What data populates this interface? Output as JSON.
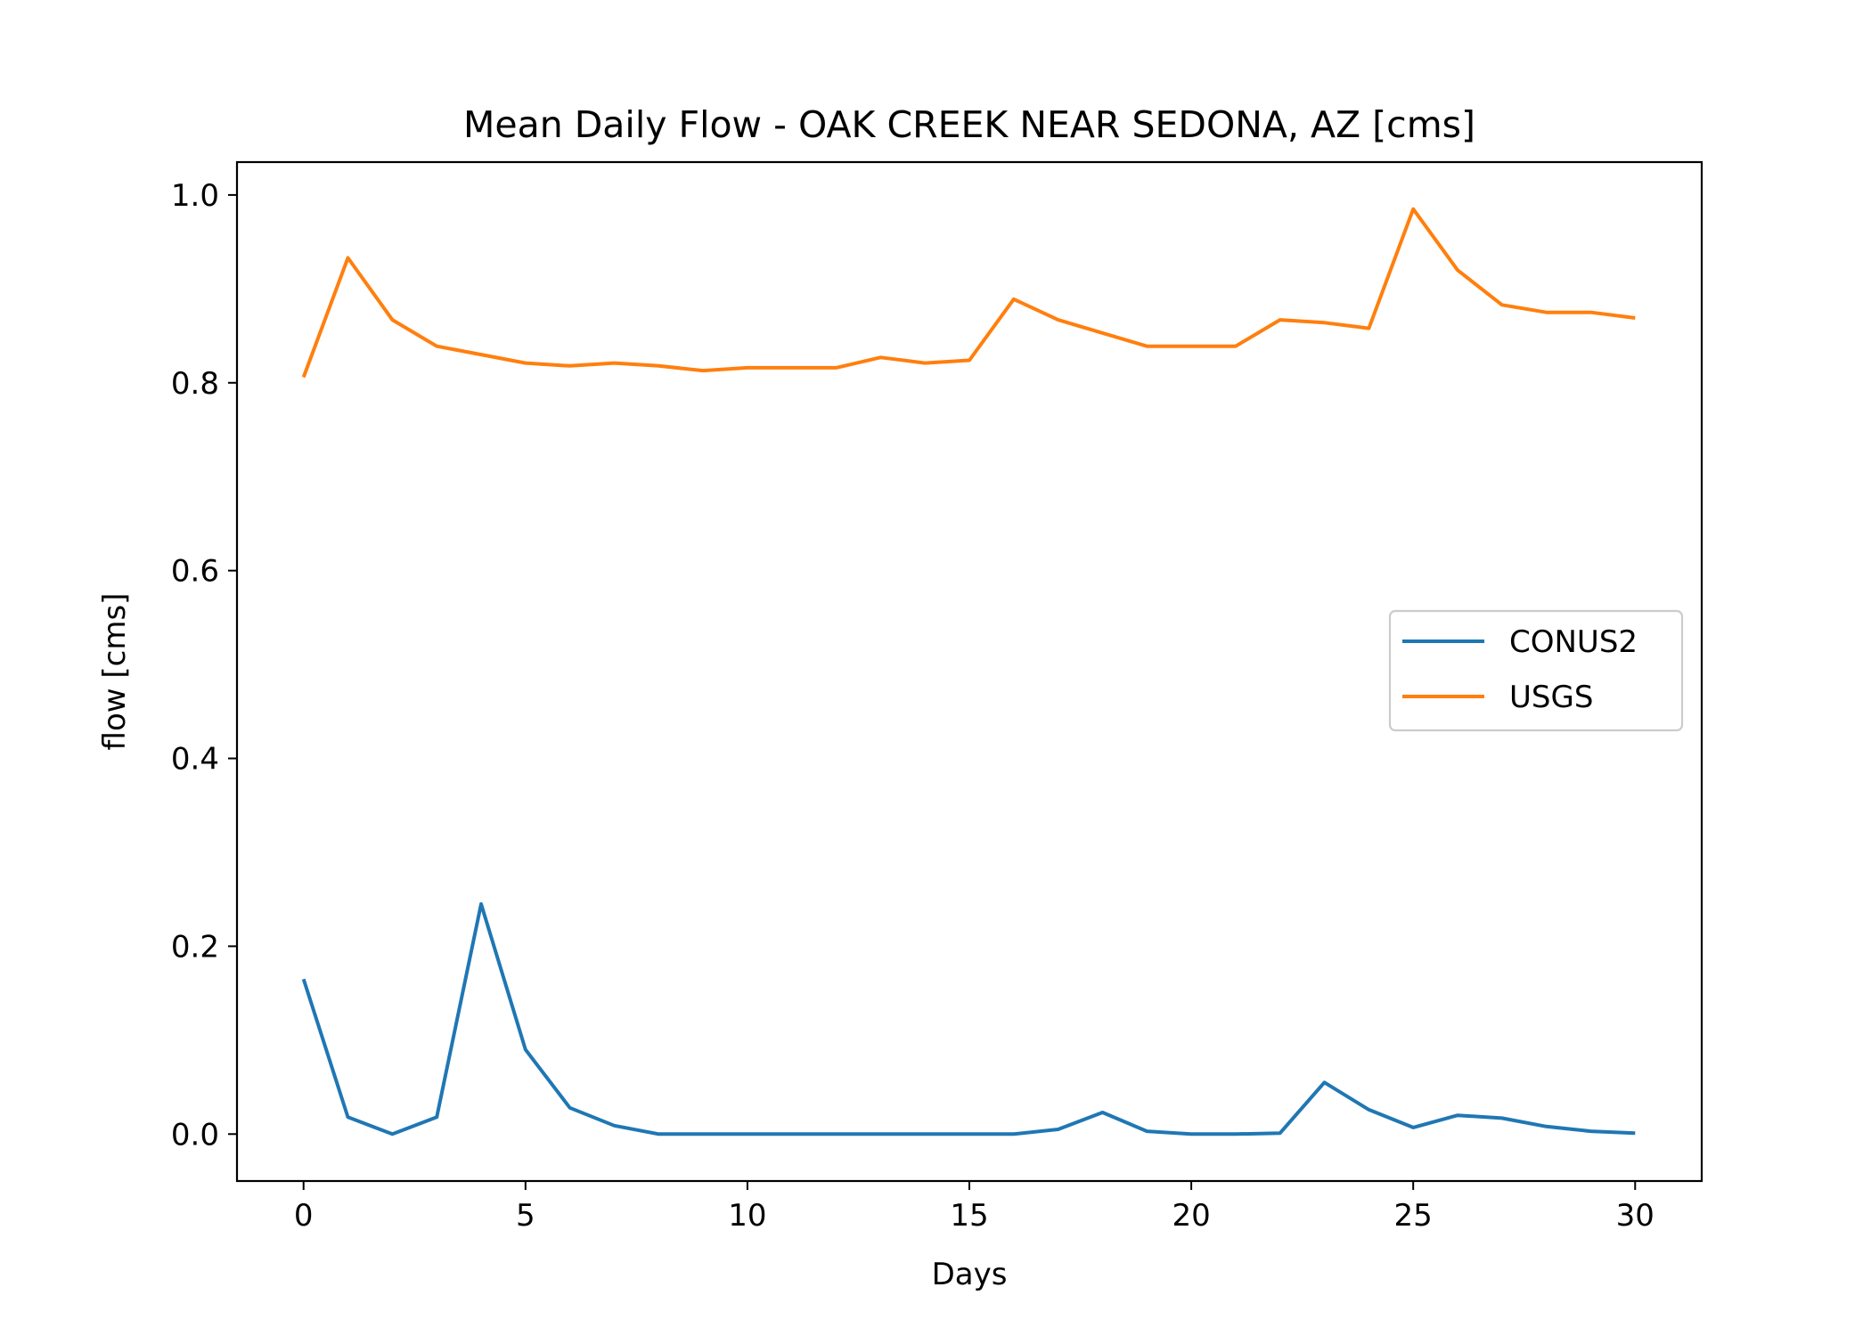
{
  "chart_data": {
    "type": "line",
    "title": "Mean Daily Flow - OAK CREEK NEAR SEDONA, AZ [cms]",
    "xlabel": "Days",
    "ylabel": "flow [cms]",
    "xlim": [
      -1.5,
      31.5
    ],
    "ylim": [
      -0.05,
      1.035
    ],
    "xticks": [
      0,
      5,
      10,
      15,
      20,
      25,
      30
    ],
    "yticks": [
      0.0,
      0.2,
      0.4,
      0.6,
      0.8,
      1.0
    ],
    "xtick_labels": [
      "0",
      "5",
      "10",
      "15",
      "20",
      "25",
      "30"
    ],
    "ytick_labels": [
      "0.0",
      "0.2",
      "0.4",
      "0.6",
      "0.8",
      "1.0"
    ],
    "grid": false,
    "legend_position": "center-right",
    "x": [
      0,
      1,
      2,
      3,
      4,
      5,
      6,
      7,
      8,
      9,
      10,
      11,
      12,
      13,
      14,
      15,
      16,
      17,
      18,
      19,
      20,
      21,
      22,
      23,
      24,
      25,
      26,
      27,
      28,
      29,
      30
    ],
    "series": [
      {
        "name": "CONUS2",
        "color": "#1f77b4",
        "values": [
          0.165,
          0.018,
          0.0,
          0.018,
          0.245,
          0.09,
          0.028,
          0.009,
          0.0,
          0.0,
          0.0,
          0.0,
          0.0,
          0.0,
          0.0,
          0.0,
          0.0,
          0.005,
          0.023,
          0.003,
          0.0,
          0.0,
          0.001,
          0.055,
          0.026,
          0.007,
          0.02,
          0.017,
          0.008,
          0.003,
          0.001
        ]
      },
      {
        "name": "USGS",
        "color": "#ff7f0e",
        "values": [
          0.806,
          0.933,
          0.867,
          0.839,
          0.83,
          0.821,
          0.818,
          0.821,
          0.818,
          0.813,
          0.816,
          0.816,
          0.816,
          0.827,
          0.821,
          0.824,
          0.889,
          0.867,
          0.853,
          0.839,
          0.839,
          0.839,
          0.867,
          0.864,
          0.858,
          0.985,
          0.92,
          0.883,
          0.875,
          0.875,
          0.869
        ]
      }
    ]
  }
}
